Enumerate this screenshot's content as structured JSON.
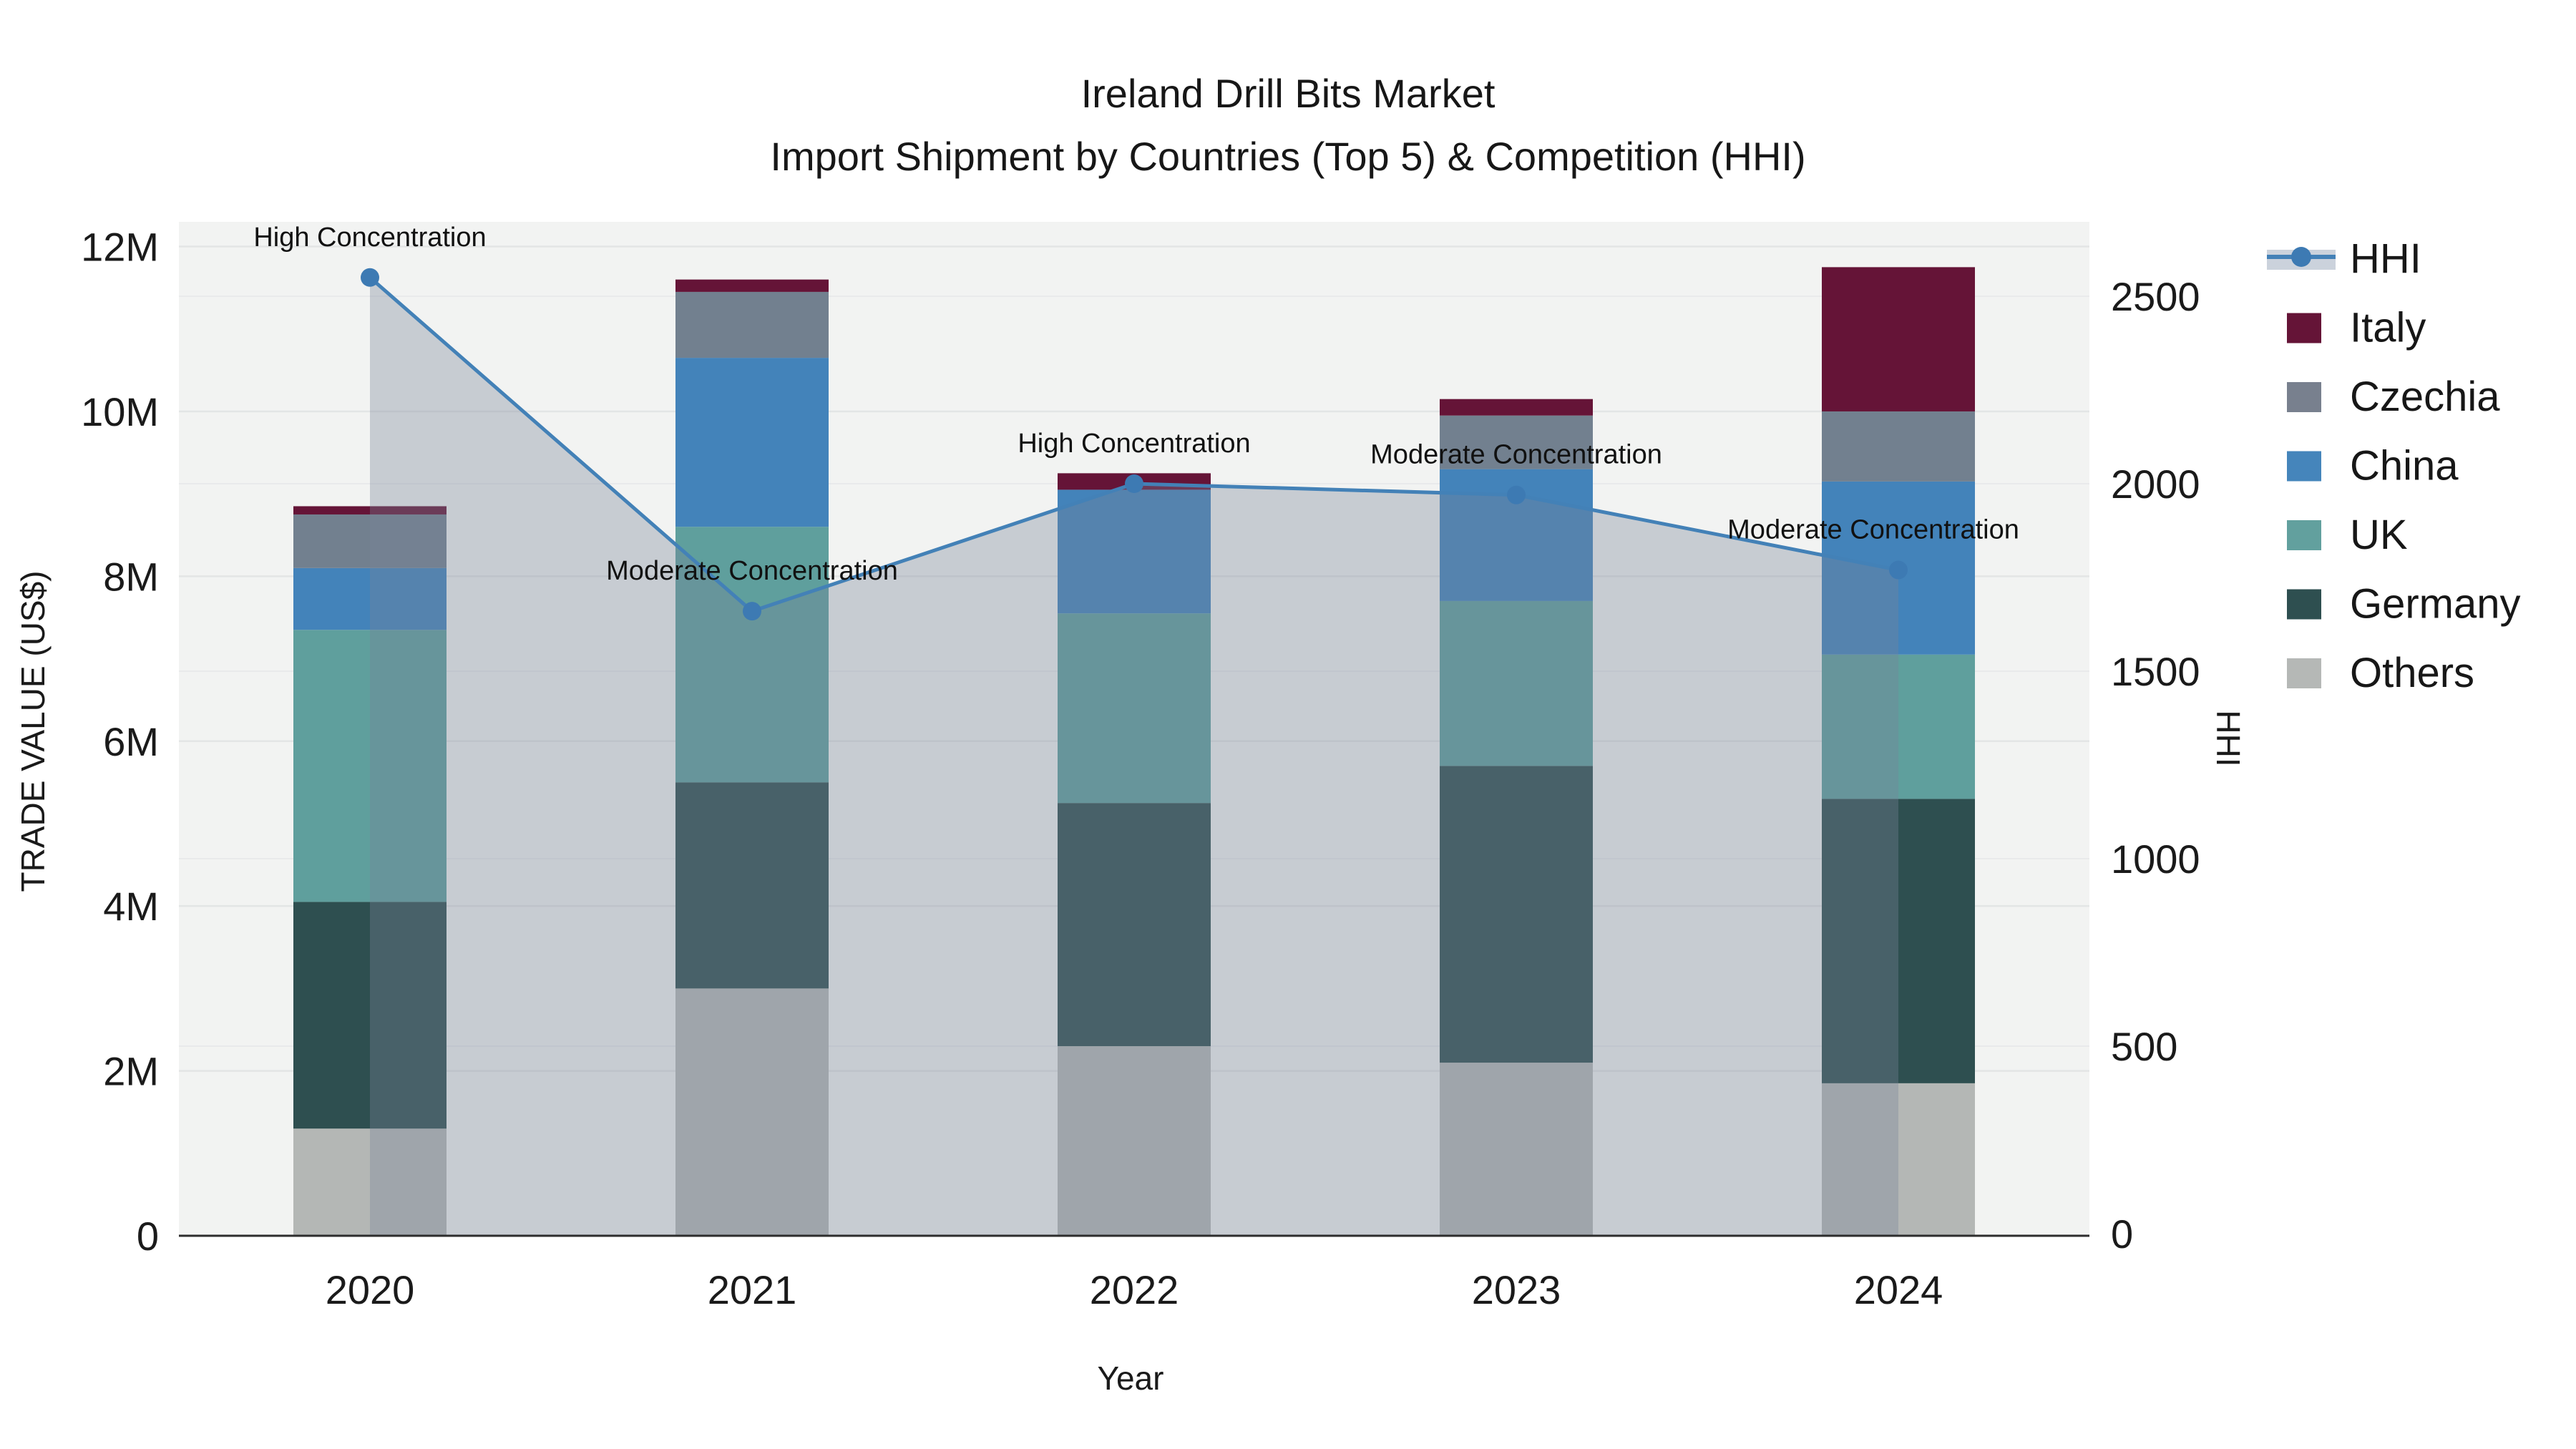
{
  "title": {
    "line1": "Ireland Drill Bits Market",
    "line2": "Import Shipment by Countries (Top 5) & Competition (HHI)"
  },
  "chart_data": {
    "type": "bar+line",
    "title": "Ireland Drill Bits Market — Import Shipment by Countries (Top 5) & Competition (HHI)",
    "categories": [
      "2020",
      "2021",
      "2022",
      "2023",
      "2024"
    ],
    "bar_unit": "million US$",
    "bar_series": [
      {
        "name": "Others",
        "color": "#b4b7b5",
        "values_musd": [
          1.3,
          3.0,
          2.3,
          2.1,
          1.85
        ]
      },
      {
        "name": "Germany",
        "color": "#2e4f50",
        "values_musd": [
          2.75,
          2.5,
          2.95,
          3.6,
          3.45
        ]
      },
      {
        "name": "UK",
        "color": "#5f9f9d",
        "values_musd": [
          3.3,
          3.1,
          2.3,
          2.0,
          1.75
        ]
      },
      {
        "name": "China",
        "color": "#4383ba",
        "values_musd": [
          0.75,
          2.05,
          1.5,
          1.6,
          2.1
        ]
      },
      {
        "name": "Czechia",
        "color": "#72808f",
        "values_musd": [
          0.65,
          0.8,
          0.0,
          0.65,
          0.85
        ]
      },
      {
        "name": "Italy",
        "color": "#651437",
        "values_musd": [
          0.1,
          0.15,
          0.2,
          0.2,
          1.75
        ]
      }
    ],
    "bar_totals_musd": [
      8.85,
      11.6,
      9.25,
      10.15,
      11.75
    ],
    "line_series": {
      "name": "HHI",
      "color": "#4381b7",
      "marker_color": "#3d7ab3",
      "area_fill": "rgba(119,131,153,0.35)",
      "values": [
        2550,
        1660,
        2000,
        1970,
        1770
      ]
    },
    "annotations": [
      {
        "year": "2020",
        "text": "High Concentration"
      },
      {
        "year": "2021",
        "text": "Moderate Concentration"
      },
      {
        "year": "2022",
        "text": "High Concentration"
      },
      {
        "year": "2023",
        "text": "Moderate Concentration"
      },
      {
        "year": "2024",
        "text": "Moderate Concentration"
      }
    ],
    "axes": {
      "left": {
        "title": "TRADE VALUE (US$)",
        "tick_labels": [
          "0",
          "2M",
          "4M",
          "6M",
          "8M",
          "10M",
          "12M"
        ],
        "tick_values_m": [
          0,
          2,
          4,
          6,
          8,
          10,
          12
        ],
        "max_m": 12.3
      },
      "right": {
        "title": "HHI",
        "tick_labels": [
          "0",
          "500",
          "1000",
          "1500",
          "2000",
          "2500"
        ],
        "tick_values": [
          0,
          500,
          1000,
          1500,
          2000,
          2500
        ],
        "max": 2700
      },
      "x": {
        "title": "Year"
      }
    },
    "legend": {
      "position": "right",
      "entries": [
        {
          "label": "HHI",
          "type": "line",
          "color": "#4381b7"
        },
        {
          "label": "Italy",
          "type": "swatch",
          "color": "#651437"
        },
        {
          "label": "Czechia",
          "type": "swatch",
          "color": "#78808e"
        },
        {
          "label": "China",
          "type": "swatch",
          "color": "#4585bb"
        },
        {
          "label": "UK",
          "type": "swatch",
          "color": "#62a09e"
        },
        {
          "label": "Germany",
          "type": "swatch",
          "color": "#2e4f50"
        },
        {
          "label": "Others",
          "type": "swatch",
          "color": "#b5b8b6"
        }
      ]
    },
    "layout": {
      "grid": true,
      "legend_position": "right-top"
    }
  },
  "colors": {
    "figure_background": "#ffffff",
    "plot_background": "#f2f3f2",
    "grid_left": "#e3e5e5",
    "grid_right": "#e9eaeb",
    "axis_line": "#2d2d2d",
    "text": "#1a1a1a",
    "annotation_text": "#111111",
    "hhi_legend_band": "#cbd2dc"
  }
}
